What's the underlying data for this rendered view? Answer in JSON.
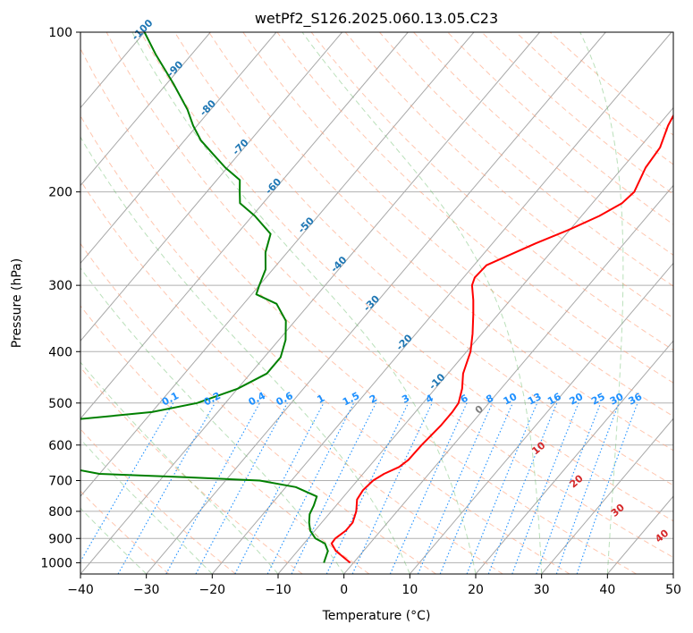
{
  "chart_data": {
    "type": "skew-t",
    "title": "wetPf2_S126.2025.060.13.05.C23",
    "xlabel": "Temperature (°C)",
    "ylabel": "Pressure (hPa)",
    "xlim": [
      -40,
      50
    ],
    "ylim": [
      1050,
      100
    ],
    "yscale": "log",
    "x_ticks": [
      -40,
      -30,
      -20,
      -10,
      0,
      10,
      20,
      30,
      40,
      50
    ],
    "y_ticks": [
      100,
      200,
      300,
      400,
      500,
      600,
      700,
      800,
      900,
      1000
    ],
    "grid": true,
    "temperature": {
      "color": "#ff0000",
      "points": [
        [
          1000,
          -0.5
        ],
        [
          950,
          -4.2
        ],
        [
          920,
          -5.8
        ],
        [
          900,
          -5.9
        ],
        [
          870,
          -5.3
        ],
        [
          840,
          -5.3
        ],
        [
          800,
          -6.2
        ],
        [
          760,
          -7.6
        ],
        [
          730,
          -7.9
        ],
        [
          700,
          -7.6
        ],
        [
          680,
          -6.8
        ],
        [
          660,
          -5.4
        ],
        [
          640,
          -4.9
        ],
        [
          600,
          -4.8
        ],
        [
          550,
          -4.4
        ],
        [
          520,
          -4.4
        ],
        [
          500,
          -4.6
        ],
        [
          470,
          -5.9
        ],
        [
          440,
          -7.7
        ],
        [
          400,
          -9.4
        ],
        [
          370,
          -11.4
        ],
        [
          340,
          -13.8
        ],
        [
          320,
          -15.6
        ],
        [
          300,
          -17.7
        ],
        [
          290,
          -18.3
        ],
        [
          275,
          -18.1
        ],
        [
          265,
          -16.3
        ],
        [
          250,
          -13.4
        ],
        [
          235,
          -10.0
        ],
        [
          222,
          -7.3
        ],
        [
          210,
          -5.5
        ],
        [
          200,
          -5.1
        ],
        [
          180,
          -6.5
        ],
        [
          165,
          -6.9
        ],
        [
          150,
          -8.5
        ],
        [
          130,
          -10.1
        ],
        [
          115,
          -10.6
        ],
        [
          100,
          -10.4
        ]
      ]
    },
    "dewpoint": {
      "color": "#008000",
      "points": [
        [
          1000,
          -4.5
        ],
        [
          950,
          -5.4
        ],
        [
          920,
          -6.8
        ],
        [
          900,
          -8.9
        ],
        [
          870,
          -10.7
        ],
        [
          840,
          -11.9
        ],
        [
          810,
          -12.9
        ],
        [
          780,
          -13.4
        ],
        [
          750,
          -14.1
        ],
        [
          720,
          -18.5
        ],
        [
          700,
          -24.8
        ],
        [
          690,
          -36.5
        ],
        [
          680,
          -50.0
        ],
        [
          620,
          -70.0
        ],
        [
          560,
          -70.0
        ],
        [
          540,
          -62.5
        ],
        [
          520,
          -50.0
        ],
        [
          500,
          -44.3
        ],
        [
          470,
          -40.0
        ],
        [
          440,
          -37.5
        ],
        [
          410,
          -37.5
        ],
        [
          380,
          -39.0
        ],
        [
          350,
          -41.4
        ],
        [
          325,
          -45.0
        ],
        [
          312,
          -49.3
        ],
        [
          300,
          -50.0
        ],
        [
          280,
          -51.1
        ],
        [
          260,
          -53.3
        ],
        [
          240,
          -54.9
        ],
        [
          222,
          -59.6
        ],
        [
          210,
          -63.5
        ],
        [
          200,
          -65.0
        ],
        [
          190,
          -66.5
        ],
        [
          180,
          -70.3
        ],
        [
          170,
          -73.8
        ],
        [
          160,
          -77.5
        ],
        [
          150,
          -80.6
        ],
        [
          140,
          -83.5
        ],
        [
          125,
          -89.0
        ],
        [
          110,
          -95.5
        ],
        [
          100,
          -100.0
        ]
      ]
    },
    "mixing_ratio_lines": {
      "color": "#1e90ff",
      "values": [
        0.1,
        0.2,
        0.4,
        0.6,
        1,
        1.5,
        2,
        3,
        4,
        6,
        8,
        10,
        13,
        16,
        20,
        25,
        30,
        36
      ],
      "labels": [
        "0.1",
        "0.2",
        "0.4",
        "0.6",
        "1",
        "1.5",
        "2",
        "3",
        "4",
        "6",
        "8",
        "10",
        "13",
        "16",
        "20",
        "25",
        "30",
        "36"
      ]
    },
    "dry_adiabats": {
      "color": "#ffa07a",
      "theta_c": [
        -30,
        -20,
        -10,
        0,
        10,
        20,
        30,
        40,
        50,
        60,
        70,
        80,
        90,
        100,
        110,
        120,
        130,
        140,
        150,
        160,
        170,
        180
      ]
    },
    "moist_adiabats": {
      "color": "#66bb66",
      "start_temps_c": [
        -30,
        -20,
        -10,
        0,
        10,
        20,
        30,
        40
      ]
    },
    "isotherm_labels": {
      "color": "#1f77b4",
      "values": [
        "-100",
        "-90",
        "-80",
        "-70",
        "-60",
        "-50",
        "-40",
        "-30",
        "-20",
        "-10"
      ]
    },
    "wetbulb_labels": {
      "color": "#d62728",
      "values": [
        "0",
        "10",
        "20",
        "30",
        "40"
      ],
      "zero_color": "#7f7f7f"
    }
  }
}
